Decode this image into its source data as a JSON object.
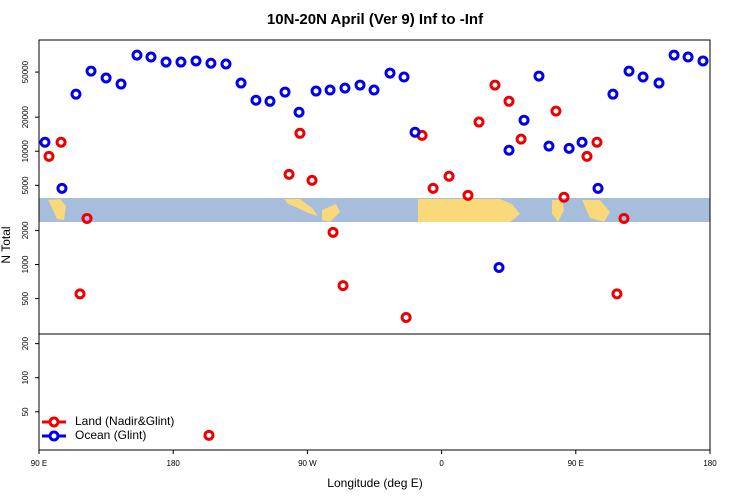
{
  "chart_data": {
    "type": "scatter",
    "title": "10N-20N April (Ver 9)   Inf to -Inf",
    "x_label": "Longitude (deg E)",
    "y_label": "N Total",
    "log_y": true,
    "legend": "bottom-left",
    "xlim": [
      90,
      540
    ],
    "ylim": [
      23,
      96000
    ],
    "xticks": [
      {
        "value": 90,
        "label": "90 E"
      },
      180,
      {
        "value": 270,
        "label": "90 W"
      },
      {
        "value": 360,
        "label": "0"
      },
      {
        "value": 450,
        "label": "90 E"
      },
      {
        "value": 540,
        "label": "180"
      }
    ],
    "yticks": [
      50,
      100,
      200,
      500,
      1000,
      2000,
      5000,
      10000,
      20000,
      50000
    ],
    "series": [
      {
        "name": "Land (Nadir&Glint)",
        "color": "#ee0000",
        "x": [
          96.7,
          104.8,
          117.5,
          122.2,
          257.7,
          265.0,
          273.1,
          287.2,
          293.9,
          336.2,
          346.9,
          354.3,
          365.0,
          377.7,
          385.1,
          395.8,
          405.2,
          413.3,
          436.7,
          442.1,
          457.5,
          464.2,
          477.6,
          482.3,
          204.0
        ],
        "values": [
          9000,
          12000,
          550,
          2550,
          6250,
          14400,
          5530,
          1920,
          650,
          340,
          13800,
          4700,
          6010,
          4080,
          18100,
          38400,
          27600,
          12800,
          22600,
          3920,
          9000,
          12000,
          550,
          2550,
          31
        ]
      },
      {
        "name": "Ocean (Glint)",
        "color": "#0000ee",
        "x": [
          94.0,
          105.4,
          114.8,
          124.9,
          135.0,
          145.0,
          155.7,
          165.1,
          175.2,
          185.2,
          195.3,
          205.3,
          215.4,
          225.5,
          235.5,
          244.9,
          255.0,
          264.4,
          275.8,
          285.2,
          295.2,
          305.3,
          314.7,
          325.4,
          334.8,
          342.2,
          398.5,
          405.2,
          415.3,
          425.3,
          432.0,
          445.5,
          454.2,
          464.9,
          474.9,
          485.7,
          495.1,
          505.8,
          515.9,
          525.3,
          535.3
        ],
        "values": [
          12000,
          4700,
          31900,
          51000,
          44300,
          39200,
          70600,
          67900,
          61300,
          61300,
          62700,
          59800,
          58900,
          40000,
          28200,
          27600,
          33300,
          22100,
          34000,
          34700,
          36100,
          38400,
          34700,
          49000,
          45200,
          14700,
          940,
          10200,
          18800,
          46100,
          11100,
          10600,
          12000,
          4700,
          31900,
          51000,
          45200,
          40000,
          70600,
          67900,
          62700
        ]
      }
    ]
  }
}
